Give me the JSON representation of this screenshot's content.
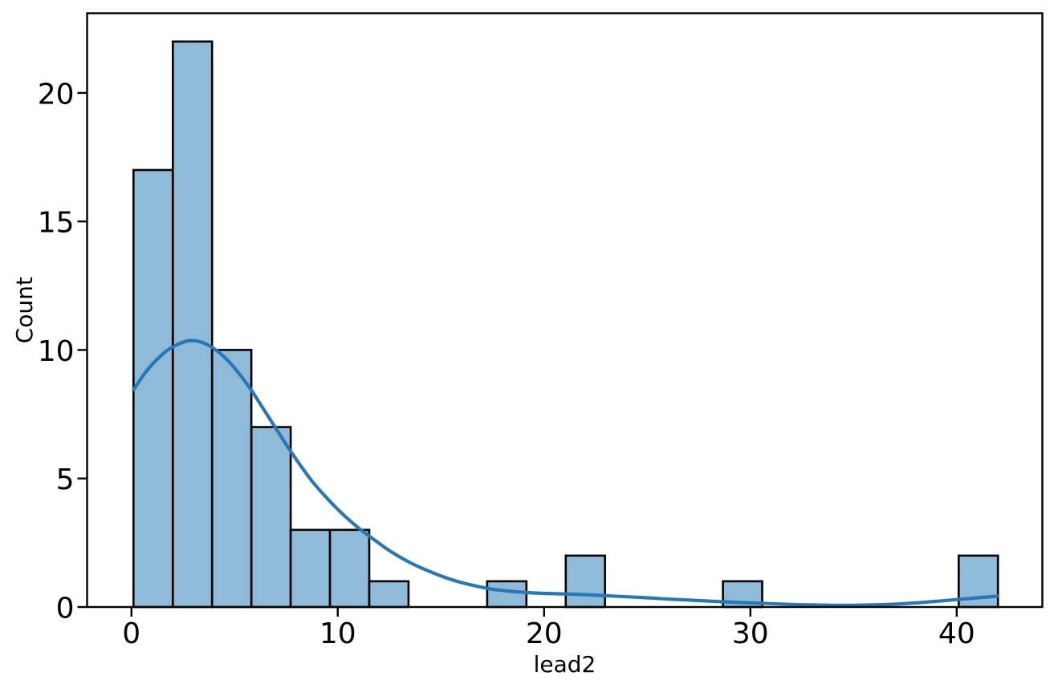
{
  "chart_data": {
    "type": "bar",
    "subtype": "histogram_with_kde",
    "title": "",
    "xlabel": "lead2",
    "ylabel": "Count",
    "x_ticks": [
      0,
      10,
      20,
      30,
      40
    ],
    "y_ticks": [
      0,
      5,
      10,
      15,
      20
    ],
    "xlim": [
      -2.15,
      44.15
    ],
    "ylim": [
      0,
      23.1
    ],
    "grid": "off",
    "legend": "none",
    "bins": {
      "start": 0.1,
      "width": 1.9045,
      "counts": [
        17,
        22,
        10,
        7,
        3,
        3,
        1,
        0,
        0,
        1,
        0,
        2,
        0,
        0,
        0,
        1,
        0,
        0,
        0,
        0,
        0,
        2
      ]
    },
    "kde": {
      "x": [
        0.1,
        0.8,
        1.6,
        2.2,
        2.8,
        3.4,
        4.0,
        4.6,
        5.2,
        5.8,
        6.4,
        7.0,
        7.6,
        8.2,
        8.8,
        9.4,
        10.0,
        10.6,
        11.2,
        11.8,
        12.4,
        13.0,
        13.7,
        14.4,
        15.2,
        16.0,
        16.8,
        17.6,
        18.4,
        19.2,
        20.0,
        21.0,
        22.0,
        23.0,
        24.0,
        25.0,
        26.0,
        27.0,
        28.0,
        29.0,
        30.0,
        31.0,
        32.0,
        33.0,
        34.0,
        35.0,
        36.0,
        37.0,
        38.0,
        39.0,
        40.0,
        41.0,
        42.0
      ],
      "y": [
        8.45,
        9.25,
        9.9,
        10.2,
        10.36,
        10.3,
        10.05,
        9.65,
        9.1,
        8.45,
        7.7,
        6.95,
        6.2,
        5.5,
        4.85,
        4.3,
        3.8,
        3.35,
        2.95,
        2.6,
        2.25,
        1.95,
        1.65,
        1.4,
        1.15,
        0.95,
        0.8,
        0.68,
        0.61,
        0.56,
        0.53,
        0.51,
        0.48,
        0.44,
        0.4,
        0.36,
        0.31,
        0.27,
        0.23,
        0.19,
        0.16,
        0.13,
        0.1,
        0.08,
        0.07,
        0.07,
        0.08,
        0.11,
        0.16,
        0.22,
        0.29,
        0.36,
        0.42
      ]
    },
    "colors": {
      "bar_fill": "#8fbbd9",
      "bar_edge": "#000000",
      "kde_line": "#2878b8",
      "axis": "#000000",
      "text": "#000000",
      "background": "#ffffff"
    }
  }
}
